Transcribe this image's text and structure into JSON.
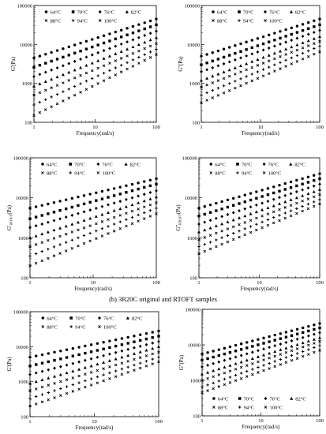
{
  "figure": {
    "caption": "(b) 3R20C original and RTOFT samples"
  },
  "chart_data": [
    {
      "type": "scatter",
      "title": "",
      "xlabel": "Frequency(rad/s)",
      "ylabel": "G'(Pa)",
      "x_scale": "log",
      "y_scale": "log",
      "xlim": [
        1,
        100
      ],
      "ylim": [
        100,
        100000
      ],
      "x_ticks": [
        "1",
        "10",
        "100"
      ],
      "y_ticks": [
        "100",
        "1000",
        "10000",
        "100000"
      ],
      "grid": false,
      "legend_position": "top",
      "x_points": [
        1,
        100
      ],
      "series": [
        {
          "name": "64°C",
          "marker": "circle",
          "values": [
            4500,
            45000
          ]
        },
        {
          "name": "70°C",
          "marker": "square",
          "values": [
            2600,
            32000
          ]
        },
        {
          "name": "76°C",
          "marker": "diamond",
          "values": [
            1500,
            22000
          ]
        },
        {
          "name": "82°C",
          "marker": "triangle",
          "values": [
            850,
            15000
          ]
        },
        {
          "name": "88°C",
          "marker": "x",
          "values": [
            500,
            10500
          ]
        },
        {
          "name": "94°C",
          "marker": "cross",
          "values": [
            280,
            7500
          ]
        },
        {
          "name": "100°C",
          "marker": "x",
          "values": [
            150,
            5500
          ]
        }
      ]
    },
    {
      "type": "scatter",
      "title": "",
      "xlabel": "Frequency(rad/s)",
      "ylabel": "G''(Pa)",
      "x_scale": "log",
      "y_scale": "log",
      "xlim": [
        1,
        100
      ],
      "ylim": [
        100,
        100000
      ],
      "x_ticks": [
        "1",
        "10",
        "100"
      ],
      "y_ticks": [
        "100",
        "1000",
        "10000",
        "100000"
      ],
      "grid": false,
      "legend_position": "top",
      "x_points": [
        1,
        100
      ],
      "series": [
        {
          "name": "64°C",
          "marker": "circle",
          "values": [
            5000,
            45000
          ]
        },
        {
          "name": "70°C",
          "marker": "square",
          "values": [
            3000,
            32000
          ]
        },
        {
          "name": "76°C",
          "marker": "diamond",
          "values": [
            2000,
            23000
          ]
        },
        {
          "name": "82°C",
          "marker": "triangle",
          "values": [
            1200,
            16000
          ]
        },
        {
          "name": "88°C",
          "marker": "x",
          "values": [
            800,
            12000
          ]
        },
        {
          "name": "94°C",
          "marker": "cross",
          "values": [
            500,
            9000
          ]
        },
        {
          "name": "100°C",
          "marker": "x",
          "values": [
            320,
            6500
          ]
        }
      ]
    },
    {
      "type": "scatter",
      "title": "",
      "xlabel": "Frequency(rad/s)",
      "ylabel": "G'RTOFT(Pa)",
      "ylabel_main": "G'",
      "ylabel_sub": "RTOFT",
      "ylabel_unit": "(Pa)",
      "x_scale": "log",
      "y_scale": "log",
      "xlim": [
        1,
        100
      ],
      "ylim": [
        100,
        100000
      ],
      "x_ticks": [
        "1",
        "10",
        "100"
      ],
      "y_ticks": [
        "100",
        "1000",
        "10000",
        "100000"
      ],
      "grid": false,
      "legend_position": "top",
      "x_points": [
        1,
        100
      ],
      "series": [
        {
          "name": "64°C",
          "marker": "circle",
          "values": [
            5500,
            30000
          ]
        },
        {
          "name": "70°C",
          "marker": "square",
          "values": [
            3000,
            22000
          ]
        },
        {
          "name": "76°C",
          "marker": "diamond",
          "values": [
            1800,
            15000
          ]
        },
        {
          "name": "82°C",
          "marker": "triangle",
          "values": [
            1000,
            10500
          ]
        },
        {
          "name": "88°C",
          "marker": "x",
          "values": [
            600,
            7500
          ]
        },
        {
          "name": "94°C",
          "marker": "cross",
          "values": [
            350,
            5500
          ]
        },
        {
          "name": "100°C",
          "marker": "x",
          "values": [
            200,
            4000
          ]
        }
      ]
    },
    {
      "type": "scatter",
      "title": "",
      "xlabel": "Frequency(rad/s)",
      "ylabel": "G''RTOFT(Pa)",
      "ylabel_main": "G''",
      "ylabel_sub": "RTOFT",
      "ylabel_unit": "(Pa)",
      "x_scale": "log",
      "y_scale": "log",
      "xlim": [
        1,
        100
      ],
      "ylim": [
        100,
        100000
      ],
      "x_ticks": [
        "1",
        "10",
        "100"
      ],
      "y_ticks": [
        "100",
        "1000",
        "10000",
        "100000"
      ],
      "grid": false,
      "legend_position": "top",
      "x_points": [
        1,
        100
      ],
      "series": [
        {
          "name": "64°C",
          "marker": "circle",
          "values": [
            5500,
            40000
          ]
        },
        {
          "name": "70°C",
          "marker": "square",
          "values": [
            3500,
            30000
          ]
        },
        {
          "name": "76°C",
          "marker": "diamond",
          "values": [
            2200,
            22000
          ]
        },
        {
          "name": "82°C",
          "marker": "triangle",
          "values": [
            1400,
            16000
          ]
        },
        {
          "name": "88°C",
          "marker": "x",
          "values": [
            900,
            12000
          ]
        },
        {
          "name": "94°C",
          "marker": "cross",
          "values": [
            600,
            9000
          ]
        },
        {
          "name": "100°C",
          "marker": "x",
          "values": [
            400,
            7000
          ]
        }
      ]
    },
    {
      "type": "scatter",
      "title": "",
      "xlabel": "Frequency(rad/s)",
      "ylabel": "G'(Pa)",
      "x_scale": "log",
      "y_scale": "log",
      "xlim": [
        1,
        100
      ],
      "ylim": [
        100,
        100000
      ],
      "x_ticks": [
        "1",
        "10",
        "100"
      ],
      "y_ticks": [
        "100",
        "1000",
        "10000",
        "100000"
      ],
      "grid": false,
      "legend_position": "top",
      "x_points": [
        1,
        100
      ],
      "series": [
        {
          "name": "64°C",
          "marker": "circle",
          "values": [
            5000,
            28000
          ]
        },
        {
          "name": "70°C",
          "marker": "square",
          "values": [
            2800,
            20000
          ]
        },
        {
          "name": "76°C",
          "marker": "diamond",
          "values": [
            1600,
            14000
          ]
        },
        {
          "name": "82°C",
          "marker": "triangle",
          "values": [
            900,
            10000
          ]
        },
        {
          "name": "88°C",
          "marker": "x",
          "values": [
            550,
            7000
          ]
        },
        {
          "name": "94°C",
          "marker": "cross",
          "values": [
            330,
            5000
          ]
        },
        {
          "name": "100°C",
          "marker": "x",
          "values": [
            200,
            3700
          ]
        }
      ]
    },
    {
      "type": "scatter",
      "title": "",
      "xlabel": "Frequency(rad/s)",
      "ylabel": "G''(Pa)",
      "x_scale": "log",
      "y_scale": "log",
      "xlim": [
        1,
        100
      ],
      "ylim": [
        100,
        100000
      ],
      "x_ticks": [
        "1",
        "10",
        "100"
      ],
      "y_ticks": [
        "100",
        "1000",
        "10000",
        "100000"
      ],
      "grid": false,
      "legend_position": "bottom",
      "x_points": [
        1,
        100
      ],
      "series": [
        {
          "name": "64°C",
          "marker": "circle",
          "values": [
            5500,
            40000
          ]
        },
        {
          "name": "70°C",
          "marker": "square",
          "values": [
            3700,
            30000
          ]
        },
        {
          "name": "76°C",
          "marker": "diamond",
          "values": [
            2400,
            22000
          ]
        },
        {
          "name": "82°C",
          "marker": "triangle",
          "values": [
            1500,
            16000
          ]
        },
        {
          "name": "88°C",
          "marker": "x",
          "values": [
            1000,
            12500
          ]
        },
        {
          "name": "94°C",
          "marker": "cross",
          "values": [
            650,
            9500
          ]
        },
        {
          "name": "100°C",
          "marker": "x",
          "values": [
            450,
            7000
          ]
        }
      ]
    }
  ]
}
